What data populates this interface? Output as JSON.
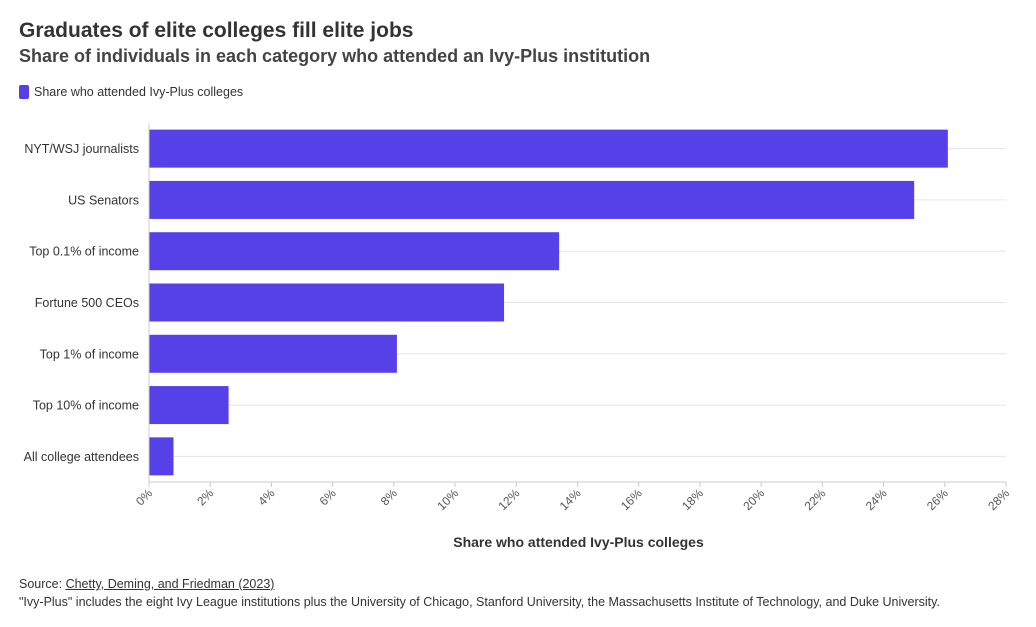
{
  "chart_data": {
    "type": "bar",
    "orientation": "horizontal",
    "title": "Graduates of elite colleges fill elite jobs",
    "subtitle": "Share of individuals in each category who attended an Ivy-Plus institution",
    "legend": [
      "Share who attended Ivy-Plus colleges"
    ],
    "legend_position": "top-left",
    "xlabel": "Share who attended Ivy-Plus colleges",
    "ylabel": "",
    "categories": [
      "NYT/WSJ journalists",
      "US Senators",
      "Top 0.1% of income",
      "Fortune 500 CEOs",
      "Top 1% of income",
      "Top 10% of income",
      "All college attendees"
    ],
    "series": [
      {
        "name": "Share who attended Ivy-Plus colleges",
        "values": [
          26.1,
          25.0,
          13.4,
          11.6,
          8.1,
          2.6,
          0.8
        ]
      }
    ],
    "xlim": [
      0,
      28
    ],
    "xticks": [
      "0%",
      "2%",
      "4%",
      "6%",
      "8%",
      "10%",
      "12%",
      "14%",
      "16%",
      "18%",
      "20%",
      "22%",
      "24%",
      "26%",
      "28%"
    ],
    "grid": true
  },
  "colors": {
    "bar": "#5640e8",
    "grid": "#e6e6e6",
    "axis": "#cccccc",
    "text": "#333333"
  },
  "footer": {
    "source_prefix": "Source: ",
    "source_link_text": "Chetty, Deming, and Friedman (2023)",
    "note": "\"Ivy-Plus\" includes the eight Ivy League institutions plus the University of Chicago, Stanford University, the Massachusetts Institute of Technology, and Duke University."
  }
}
